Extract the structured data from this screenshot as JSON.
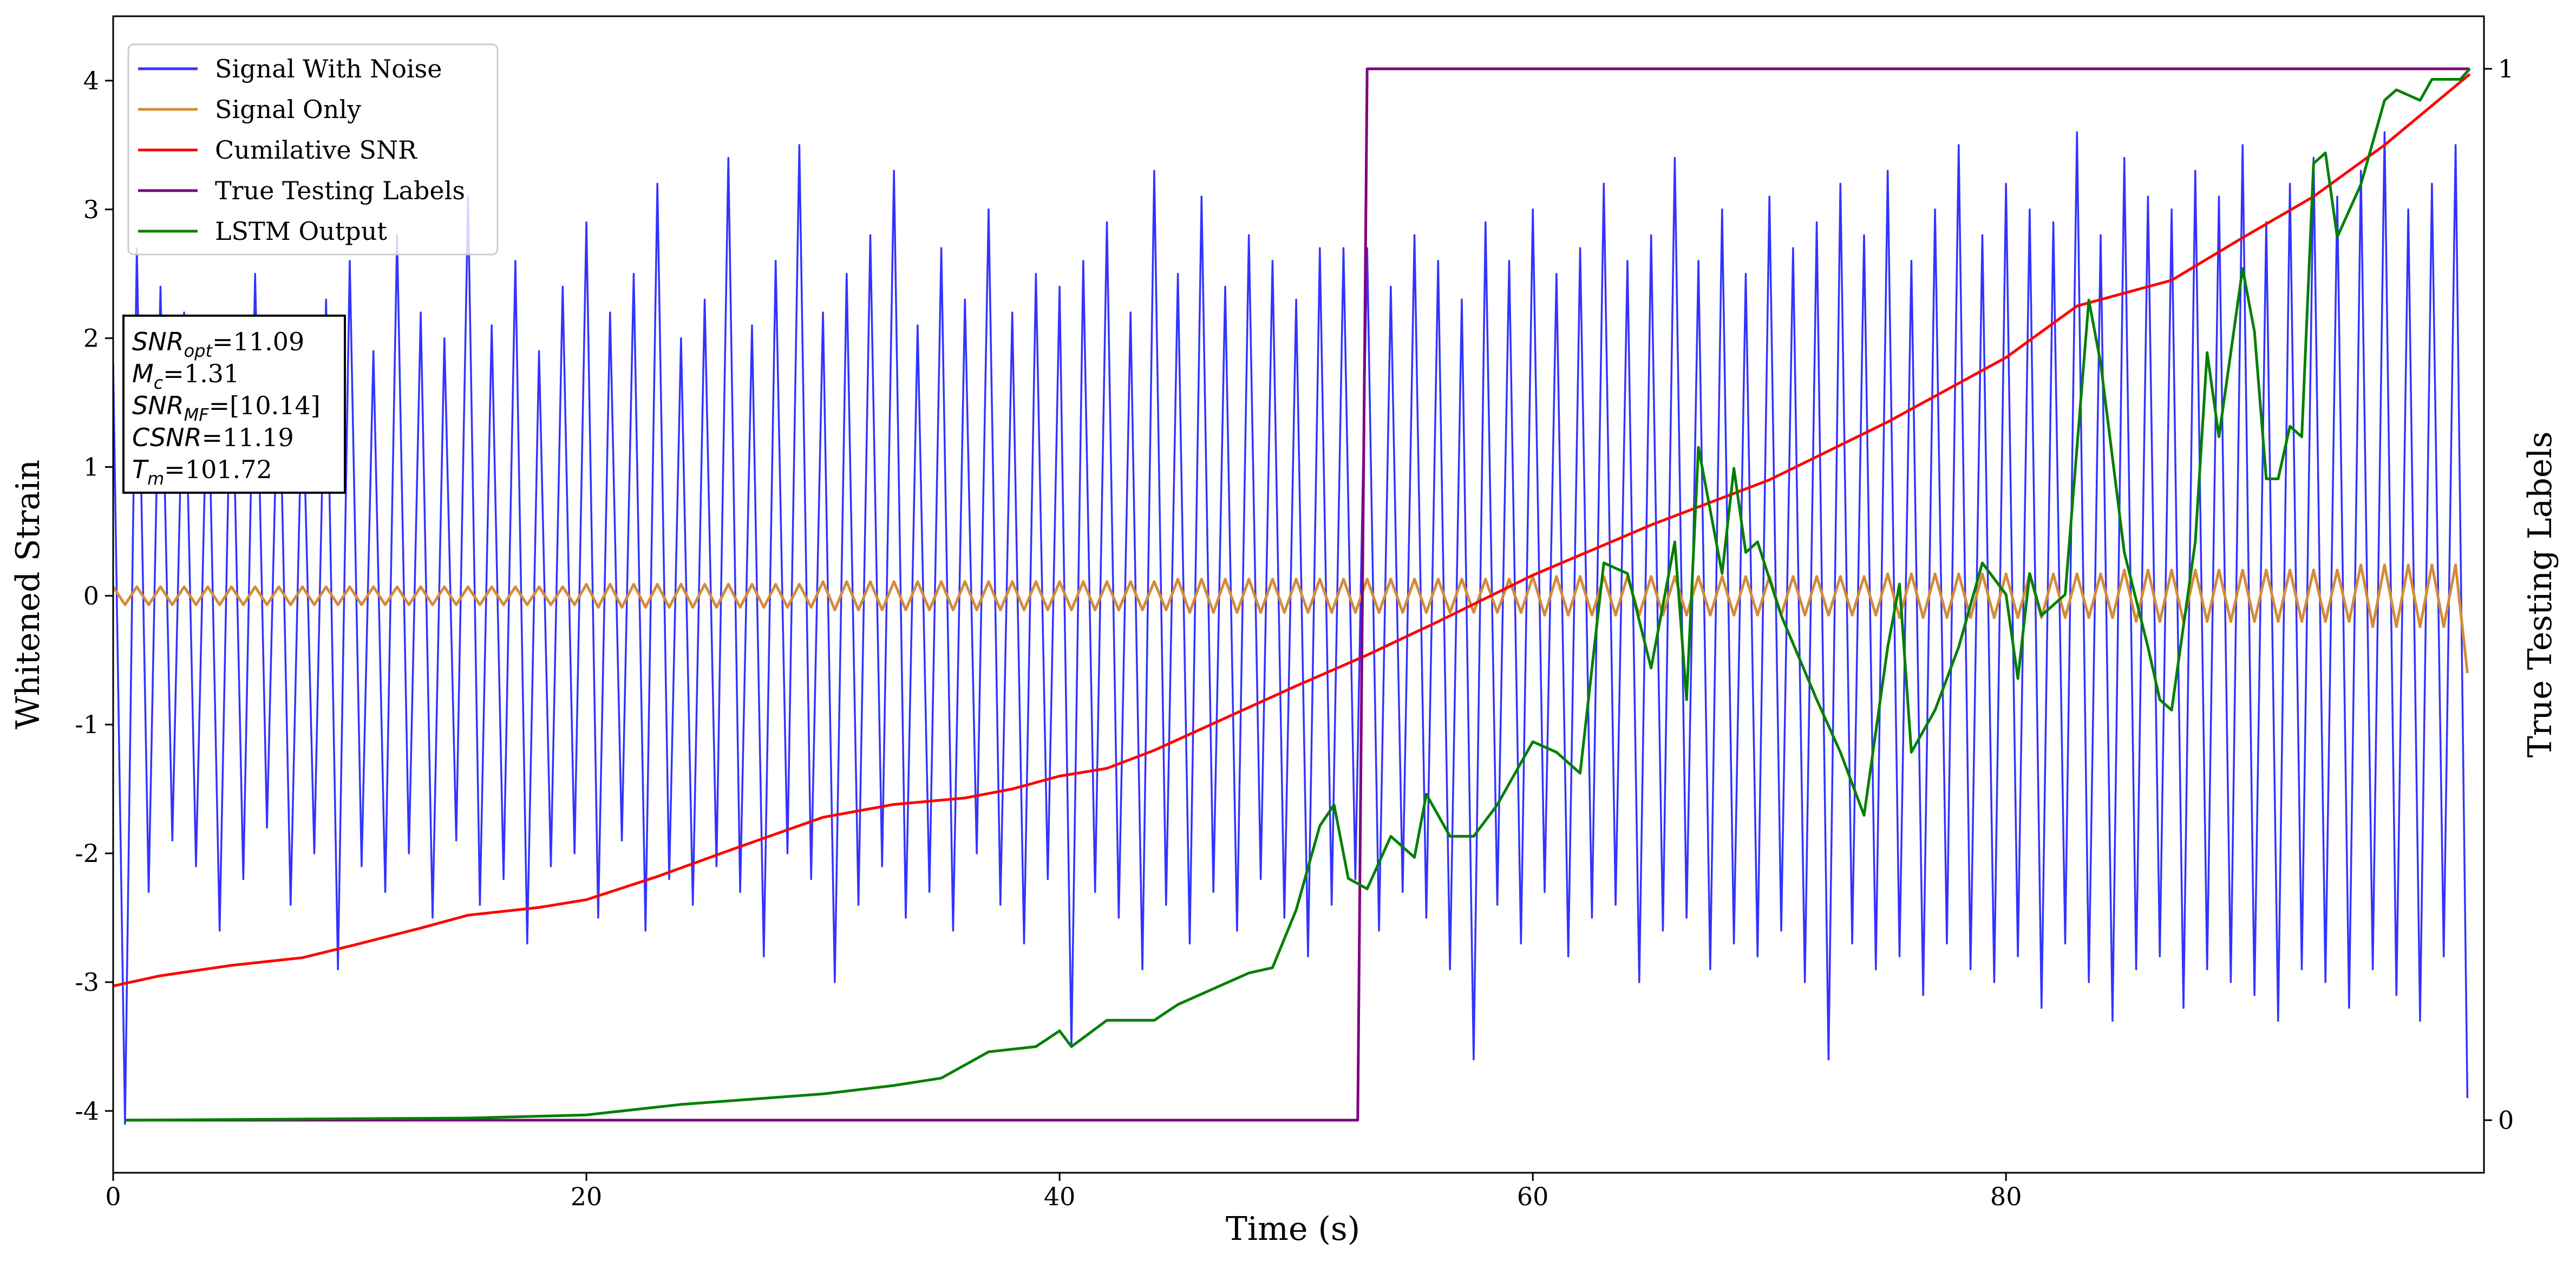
{
  "chart_data": {
    "type": "line",
    "xlabel": "Time (s)",
    "ylabel": "Whitened Strain",
    "y2label": "True Testing Labels",
    "xlim": [
      0,
      100.2
    ],
    "ylim": [
      -4.48,
      4.5
    ],
    "y2lim": [
      -0.05,
      1.05
    ],
    "xticks": [
      0,
      20,
      40,
      60,
      80
    ],
    "yticks": [
      -4,
      -3,
      -2,
      -1,
      0,
      1,
      2,
      3,
      4
    ],
    "y2ticks": [
      0,
      1
    ],
    "legend": "upper left",
    "x": [
      0,
      0.5,
      1,
      1.5,
      2,
      2.5,
      3,
      3.5,
      4,
      4.5,
      5,
      5.5,
      6,
      6.5,
      7,
      7.5,
      8,
      8.5,
      9,
      9.5,
      10,
      10.5,
      11,
      11.5,
      12,
      12.5,
      13,
      13.5,
      14,
      14.5,
      15,
      15.5,
      16,
      16.5,
      17,
      17.5,
      18,
      18.5,
      19,
      19.5,
      20,
      20.5,
      21,
      21.5,
      22,
      22.5,
      23,
      23.5,
      24,
      24.5,
      25,
      25.5,
      26,
      26.5,
      27,
      27.5,
      28,
      28.5,
      29,
      29.5,
      30,
      30.5,
      31,
      31.5,
      32,
      32.5,
      33,
      33.5,
      34,
      34.5,
      35,
      35.5,
      36,
      36.5,
      37,
      37.5,
      38,
      38.5,
      39,
      39.5,
      40,
      40.5,
      41,
      41.5,
      42,
      42.5,
      43,
      43.5,
      44,
      44.5,
      45,
      45.5,
      46,
      46.5,
      47,
      47.5,
      48,
      48.5,
      49,
      49.5,
      50,
      50.5,
      51,
      51.5,
      52,
      52.5,
      53,
      53.5,
      54,
      54.5,
      55,
      55.5,
      56,
      56.5,
      57,
      57.5,
      58,
      58.5,
      59,
      59.5,
      60,
      60.5,
      61,
      61.5,
      62,
      62.5,
      63,
      63.5,
      64,
      64.5,
      65,
      65.5,
      66,
      66.5,
      67,
      67.5,
      68,
      68.5,
      69,
      69.5,
      70,
      70.5,
      71,
      71.5,
      72,
      72.5,
      73,
      73.5,
      74,
      74.5,
      75,
      75.5,
      76,
      76.5,
      77,
      77.5,
      78,
      78.5,
      79,
      79.5,
      80,
      80.5,
      81,
      81.5,
      82,
      82.5,
      83,
      83.5,
      84,
      84.5,
      85,
      85.5,
      86,
      86.5,
      87,
      87.5,
      88,
      88.5,
      89,
      89.5,
      90,
      90.5,
      91,
      91.5,
      92,
      92.5,
      93,
      93.5,
      94,
      94.5,
      95,
      95.5,
      96,
      96.5,
      97,
      97.5,
      98,
      98.5,
      99,
      99.5
    ],
    "series": [
      {
        "name": "Signal With Noise",
        "color": "#3333ff",
        "values": [
          1.8,
          -4.1,
          2.7,
          -2.3,
          2.4,
          -1.9,
          2.2,
          -2.1,
          1.9,
          -2.6,
          2.1,
          -2.2,
          2.5,
          -1.8,
          2.0,
          -2.4,
          1.7,
          -2.0,
          2.3,
          -2.9,
          2.6,
          -2.1,
          1.9,
          -2.3,
          2.8,
          -2.0,
          2.2,
          -2.5,
          2.0,
          -1.9,
          3.1,
          -2.4,
          2.1,
          -2.2,
          2.6,
          -2.7,
          1.9,
          -2.1,
          2.4,
          -2.0,
          2.9,
          -2.5,
          2.2,
          -1.9,
          2.5,
          -2.6,
          3.2,
          -2.2,
          2.0,
          -2.4,
          2.3,
          -2.1,
          3.4,
          -2.3,
          2.1,
          -2.8,
          2.6,
          -2.0,
          3.5,
          -2.2,
          2.2,
          -3.0,
          2.5,
          -2.4,
          2.8,
          -2.1,
          3.3,
          -2.5,
          2.1,
          -2.3,
          2.7,
          -2.6,
          2.3,
          -2.0,
          3.0,
          -2.4,
          2.2,
          -2.7,
          2.5,
          -2.2,
          2.4,
          -3.5,
          2.6,
          -2.3,
          2.9,
          -2.5,
          2.2,
          -2.9,
          3.3,
          -2.4,
          2.5,
          -2.7,
          3.1,
          -2.3,
          2.4,
          -2.6,
          2.8,
          -2.2,
          2.6,
          -2.5,
          2.3,
          -2.8,
          2.7,
          -2.4,
          2.7,
          -2.2,
          2.7,
          -2.6,
          2.4,
          -2.3,
          2.8,
          -2.5,
          2.6,
          -2.9,
          2.3,
          -3.6,
          2.9,
          -2.4,
          2.6,
          -2.7,
          3.0,
          -2.3,
          2.5,
          -2.8,
          2.7,
          -2.5,
          3.2,
          -2.4,
          2.6,
          -3.0,
          2.8,
          -2.6,
          3.4,
          -2.5,
          2.6,
          -2.9,
          3.0,
          -2.7,
          2.5,
          -2.8,
          3.1,
          -2.6,
          2.7,
          -3.0,
          2.9,
          -3.6,
          3.2,
          -2.7,
          2.8,
          -2.9,
          3.3,
          -2.8,
          2.6,
          -3.1,
          3.0,
          -2.7,
          3.5,
          -2.9,
          2.8,
          -3.0,
          3.2,
          -2.8,
          3.0,
          -3.2,
          2.9,
          -2.7,
          3.6,
          -3.0,
          2.8,
          -3.3,
          3.4,
          -2.9,
          3.1,
          -2.8,
          3.0,
          -3.2,
          3.3,
          -2.9,
          3.1,
          -3.0,
          3.5,
          -3.1,
          2.9,
          -3.3,
          3.2,
          -2.9,
          3.4,
          -3.0,
          3.1,
          -3.2,
          3.3,
          -2.9,
          3.6,
          -3.1,
          3.0,
          -3.3,
          3.2,
          -2.8,
          3.5,
          -3.9
        ]
      },
      {
        "name": "Signal Only",
        "color": "#d48b39",
        "values": [
          0.07,
          -0.07,
          0.07,
          -0.07,
          0.07,
          -0.07,
          0.07,
          -0.07,
          0.07,
          -0.07,
          0.07,
          -0.07,
          0.07,
          -0.07,
          0.07,
          -0.07,
          0.07,
          -0.07,
          0.07,
          -0.07,
          0.07,
          -0.07,
          0.07,
          -0.07,
          0.07,
          -0.07,
          0.07,
          -0.07,
          0.07,
          -0.07,
          0.07,
          -0.07,
          0.07,
          -0.07,
          0.07,
          -0.07,
          0.07,
          -0.07,
          0.07,
          -0.07,
          0.09,
          -0.09,
          0.09,
          -0.09,
          0.09,
          -0.09,
          0.09,
          -0.09,
          0.09,
          -0.09,
          0.09,
          -0.09,
          0.09,
          -0.09,
          0.09,
          -0.09,
          0.09,
          -0.09,
          0.09,
          -0.09,
          0.11,
          -0.11,
          0.11,
          -0.11,
          0.11,
          -0.11,
          0.11,
          -0.11,
          0.11,
          -0.11,
          0.11,
          -0.11,
          0.11,
          -0.11,
          0.11,
          -0.11,
          0.11,
          -0.11,
          0.11,
          -0.11,
          0.11,
          -0.11,
          0.11,
          -0.11,
          0.11,
          -0.11,
          0.11,
          -0.11,
          0.11,
          -0.11,
          0.13,
          -0.13,
          0.13,
          -0.13,
          0.13,
          -0.13,
          0.13,
          -0.13,
          0.13,
          -0.13,
          0.13,
          -0.13,
          0.13,
          -0.13,
          0.13,
          -0.13,
          0.13,
          -0.13,
          0.13,
          -0.13,
          0.13,
          -0.13,
          0.13,
          -0.13,
          0.13,
          -0.13,
          0.13,
          -0.13,
          0.13,
          -0.13,
          0.15,
          -0.15,
          0.15,
          -0.15,
          0.15,
          -0.15,
          0.15,
          -0.15,
          0.15,
          -0.15,
          0.15,
          -0.15,
          0.15,
          -0.15,
          0.15,
          -0.15,
          0.15,
          -0.15,
          0.15,
          -0.15,
          0.15,
          -0.15,
          0.15,
          -0.15,
          0.15,
          -0.15,
          0.15,
          -0.15,
          0.15,
          -0.15,
          0.17,
          -0.17,
          0.17,
          -0.17,
          0.17,
          -0.17,
          0.17,
          -0.17,
          0.17,
          -0.17,
          0.17,
          -0.17,
          0.17,
          -0.17,
          0.17,
          -0.17,
          0.17,
          -0.17,
          0.17,
          -0.17,
          0.2,
          -0.2,
          0.2,
          -0.2,
          0.2,
          -0.2,
          0.2,
          -0.2,
          0.2,
          -0.2,
          0.2,
          -0.2,
          0.2,
          -0.2,
          0.2,
          -0.2,
          0.2,
          -0.2,
          0.2,
          -0.2,
          0.24,
          -0.24,
          0.24,
          -0.24,
          0.24,
          -0.24,
          0.24,
          -0.24,
          0.24,
          -0.6
        ]
      },
      {
        "name": "Cumilative SNR",
        "color": "#ff0000",
        "x": [
          0,
          2,
          5,
          8,
          10,
          13,
          15,
          18,
          20,
          23,
          26,
          30,
          33,
          36,
          38,
          40,
          42,
          44,
          47,
          50,
          53,
          56,
          60,
          65,
          70,
          75,
          80,
          83,
          87,
          90,
          93,
          96,
          99.6
        ],
        "values": [
          -3.03,
          -2.95,
          -2.87,
          -2.81,
          -2.72,
          -2.58,
          -2.48,
          -2.42,
          -2.36,
          -2.18,
          -1.98,
          -1.72,
          -1.62,
          -1.57,
          -1.5,
          -1.4,
          -1.34,
          -1.2,
          -0.95,
          -0.7,
          -0.46,
          -0.2,
          0.16,
          0.55,
          0.9,
          1.35,
          1.85,
          2.25,
          2.45,
          2.78,
          3.1,
          3.5,
          4.05
        ]
      },
      {
        "name": "True Testing Labels",
        "color": "#800080",
        "axis": "y2",
        "x": [
          0.5,
          52.6,
          53,
          99.6
        ],
        "values": [
          0,
          0,
          1,
          1
        ]
      },
      {
        "name": "LSTM Output",
        "color": "#008000",
        "axis": "y2",
        "x": [
          0.5,
          15,
          20,
          24,
          27,
          30,
          33,
          35,
          37,
          39,
          40,
          40.5,
          42,
          44,
          45,
          47,
          48,
          49,
          50,
          51,
          51.6,
          52.2,
          53,
          54,
          55,
          55.5,
          56.5,
          57.5,
          58.5,
          60,
          61,
          62,
          63,
          64,
          65,
          66,
          66.5,
          67,
          68,
          68.5,
          69,
          69.5,
          70.5,
          72,
          73,
          74,
          75,
          75.5,
          76,
          77,
          78,
          79,
          80,
          80.5,
          81,
          81.5,
          82.5,
          83.5,
          84,
          85,
          86,
          86.5,
          87,
          88,
          88.5,
          89,
          90,
          90.5,
          91,
          91.5,
          92,
          92.5,
          93,
          93.5,
          94,
          95,
          96,
          96.5,
          97.5,
          98,
          99.2,
          99.6
        ],
        "values": [
          0,
          0.002,
          0.005,
          0.015,
          0.02,
          0.025,
          0.033,
          0.04,
          0.065,
          0.07,
          0.085,
          0.07,
          0.095,
          0.095,
          0.11,
          0.13,
          0.14,
          0.145,
          0.2,
          0.28,
          0.3,
          0.23,
          0.22,
          0.27,
          0.25,
          0.31,
          0.27,
          0.27,
          0.3,
          0.36,
          0.35,
          0.33,
          0.53,
          0.52,
          0.43,
          0.55,
          0.4,
          0.64,
          0.52,
          0.62,
          0.54,
          0.55,
          0.48,
          0.4,
          0.35,
          0.29,
          0.45,
          0.51,
          0.35,
          0.39,
          0.45,
          0.53,
          0.5,
          0.42,
          0.52,
          0.48,
          0.5,
          0.78,
          0.72,
          0.54,
          0.45,
          0.4,
          0.39,
          0.55,
          0.73,
          0.65,
          0.81,
          0.75,
          0.61,
          0.61,
          0.66,
          0.65,
          0.91,
          0.92,
          0.84,
          0.89,
          0.97,
          0.98,
          0.97,
          0.99,
          0.99,
          1.0
        ]
      }
    ],
    "annotations": [
      {
        "symbol": "SNR",
        "sub": "opt",
        "text": "=11.09"
      },
      {
        "symbol": "M",
        "sub": "c",
        "text": "=1.31"
      },
      {
        "symbol": "SNR",
        "sub": "MF",
        "text": "=[10.14]"
      },
      {
        "symbol": "CSNR",
        "text": "=11.19"
      },
      {
        "symbol": "T",
        "sub": "m",
        "text": "=101.72"
      }
    ]
  }
}
